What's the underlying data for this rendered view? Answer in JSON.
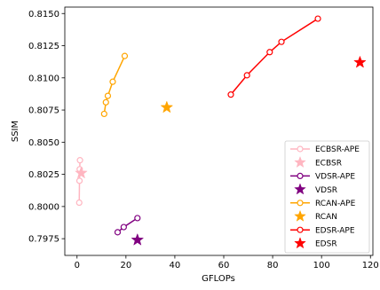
{
  "chart_data": {
    "type": "scatter",
    "title": "",
    "xlabel": "GFLOPs",
    "ylabel": "SSIM",
    "xlim": [
      -5,
      121
    ],
    "ylim": [
      0.7962,
      0.8155
    ],
    "xticks": [
      0,
      20,
      40,
      60,
      80,
      100,
      120
    ],
    "yticks": [
      0.7975,
      0.8,
      0.8025,
      0.805,
      0.8075,
      0.81,
      0.8125,
      0.815
    ],
    "ytick_labels": [
      "0.7975",
      "0.8000",
      "0.8025",
      "0.8050",
      "0.8075",
      "0.8100",
      "0.8125",
      "0.8150"
    ],
    "grid": false,
    "legend_position": "lower right",
    "series": [
      {
        "name": "ECBSR-APE",
        "kind": "line",
        "color": "#ffb6c1",
        "x": [
          0.9,
          1.0,
          1.1,
          1.2
        ],
        "y": [
          0.8003,
          0.802,
          0.8029,
          0.8036
        ]
      },
      {
        "name": "ECBSR",
        "kind": "star",
        "color": "#ffb6c1",
        "x": [
          1.7
        ],
        "y": [
          0.8026
        ]
      },
      {
        "name": "VDSR-APE",
        "kind": "line",
        "color": "#800080",
        "x": [
          16.6,
          19.1,
          24.7
        ],
        "y": [
          0.798,
          0.7984,
          0.7991
        ]
      },
      {
        "name": "VDSR",
        "kind": "star",
        "color": "#800080",
        "x": [
          24.7
        ],
        "y": [
          0.7974
        ]
      },
      {
        "name": "RCAN-APE",
        "kind": "line",
        "color": "#ffa500",
        "x": [
          11.1,
          11.8,
          12.6,
          14.6,
          19.5
        ],
        "y": [
          0.8072,
          0.8081,
          0.8086,
          0.8097,
          0.8117
        ]
      },
      {
        "name": "RCAN",
        "kind": "star",
        "color": "#ffa500",
        "x": [
          36.7
        ],
        "y": [
          0.8077
        ]
      },
      {
        "name": "EDSR-APE",
        "kind": "line",
        "color": "#ff0000",
        "x": [
          62.9,
          69.5,
          78.8,
          83.6,
          98.5
        ],
        "y": [
          0.8087,
          0.8102,
          0.812,
          0.8128,
          0.8146
        ]
      },
      {
        "name": "EDSR",
        "kind": "star",
        "color": "#ff0000",
        "x": [
          115.7
        ],
        "y": [
          0.8112
        ]
      }
    ]
  }
}
